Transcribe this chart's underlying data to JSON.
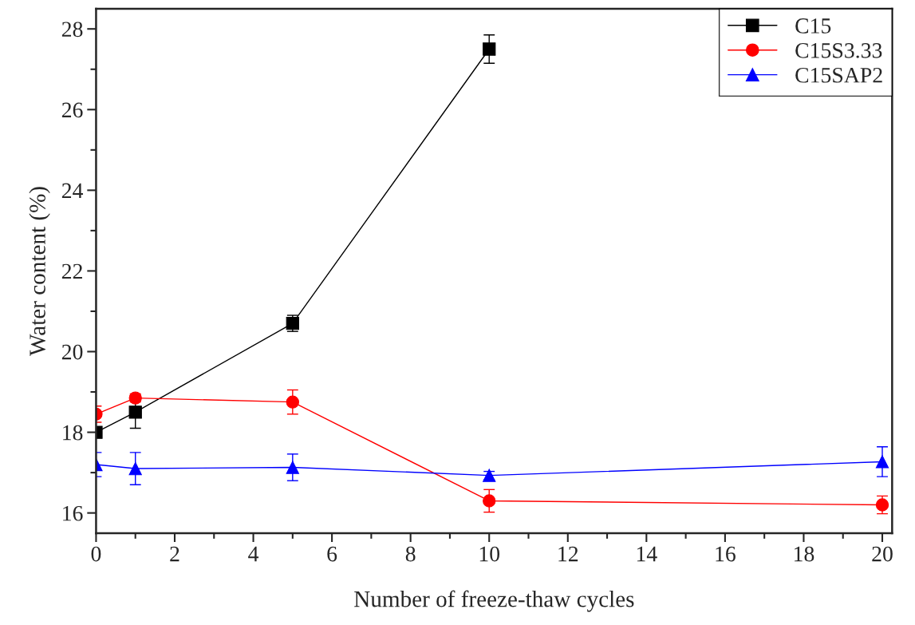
{
  "chart_data": {
    "type": "line",
    "xlabel": "Number of freeze-thaw cycles",
    "ylabel": "Water content (%)",
    "xlim": [
      0,
      20.25
    ],
    "xticks": [
      0,
      2,
      4,
      6,
      8,
      10,
      12,
      14,
      16,
      18,
      20
    ],
    "ylim": [
      15.5,
      28.5
    ],
    "yticks": [
      16,
      18,
      20,
      22,
      24,
      26,
      28
    ],
    "grid": false,
    "legend": "top right",
    "line_style": "solid",
    "series": [
      {
        "name": "C15",
        "color": "#000000",
        "marker": "square",
        "x": [
          0,
          1,
          5,
          10
        ],
        "values": [
          18.0,
          18.5,
          20.7,
          27.5
        ],
        "errors": [
          null,
          0.4,
          0.2,
          0.35
        ]
      },
      {
        "name": "C15S3.33",
        "color": "#ff0000",
        "marker": "circle",
        "x": [
          0,
          1,
          5,
          10,
          20
        ],
        "values": [
          18.45,
          18.85,
          18.75,
          16.3,
          16.2
        ],
        "errors": [
          0.2,
          0.1,
          0.3,
          0.28,
          0.22
        ]
      },
      {
        "name": "C15SAP2",
        "color": "#0000ff",
        "marker": "triangle",
        "x": [
          0,
          1,
          5,
          10,
          20
        ],
        "values": [
          17.2,
          17.1,
          17.13,
          16.93,
          17.27
        ],
        "errors": [
          0.3,
          0.4,
          0.33,
          0.1,
          0.37
        ]
      }
    ]
  }
}
